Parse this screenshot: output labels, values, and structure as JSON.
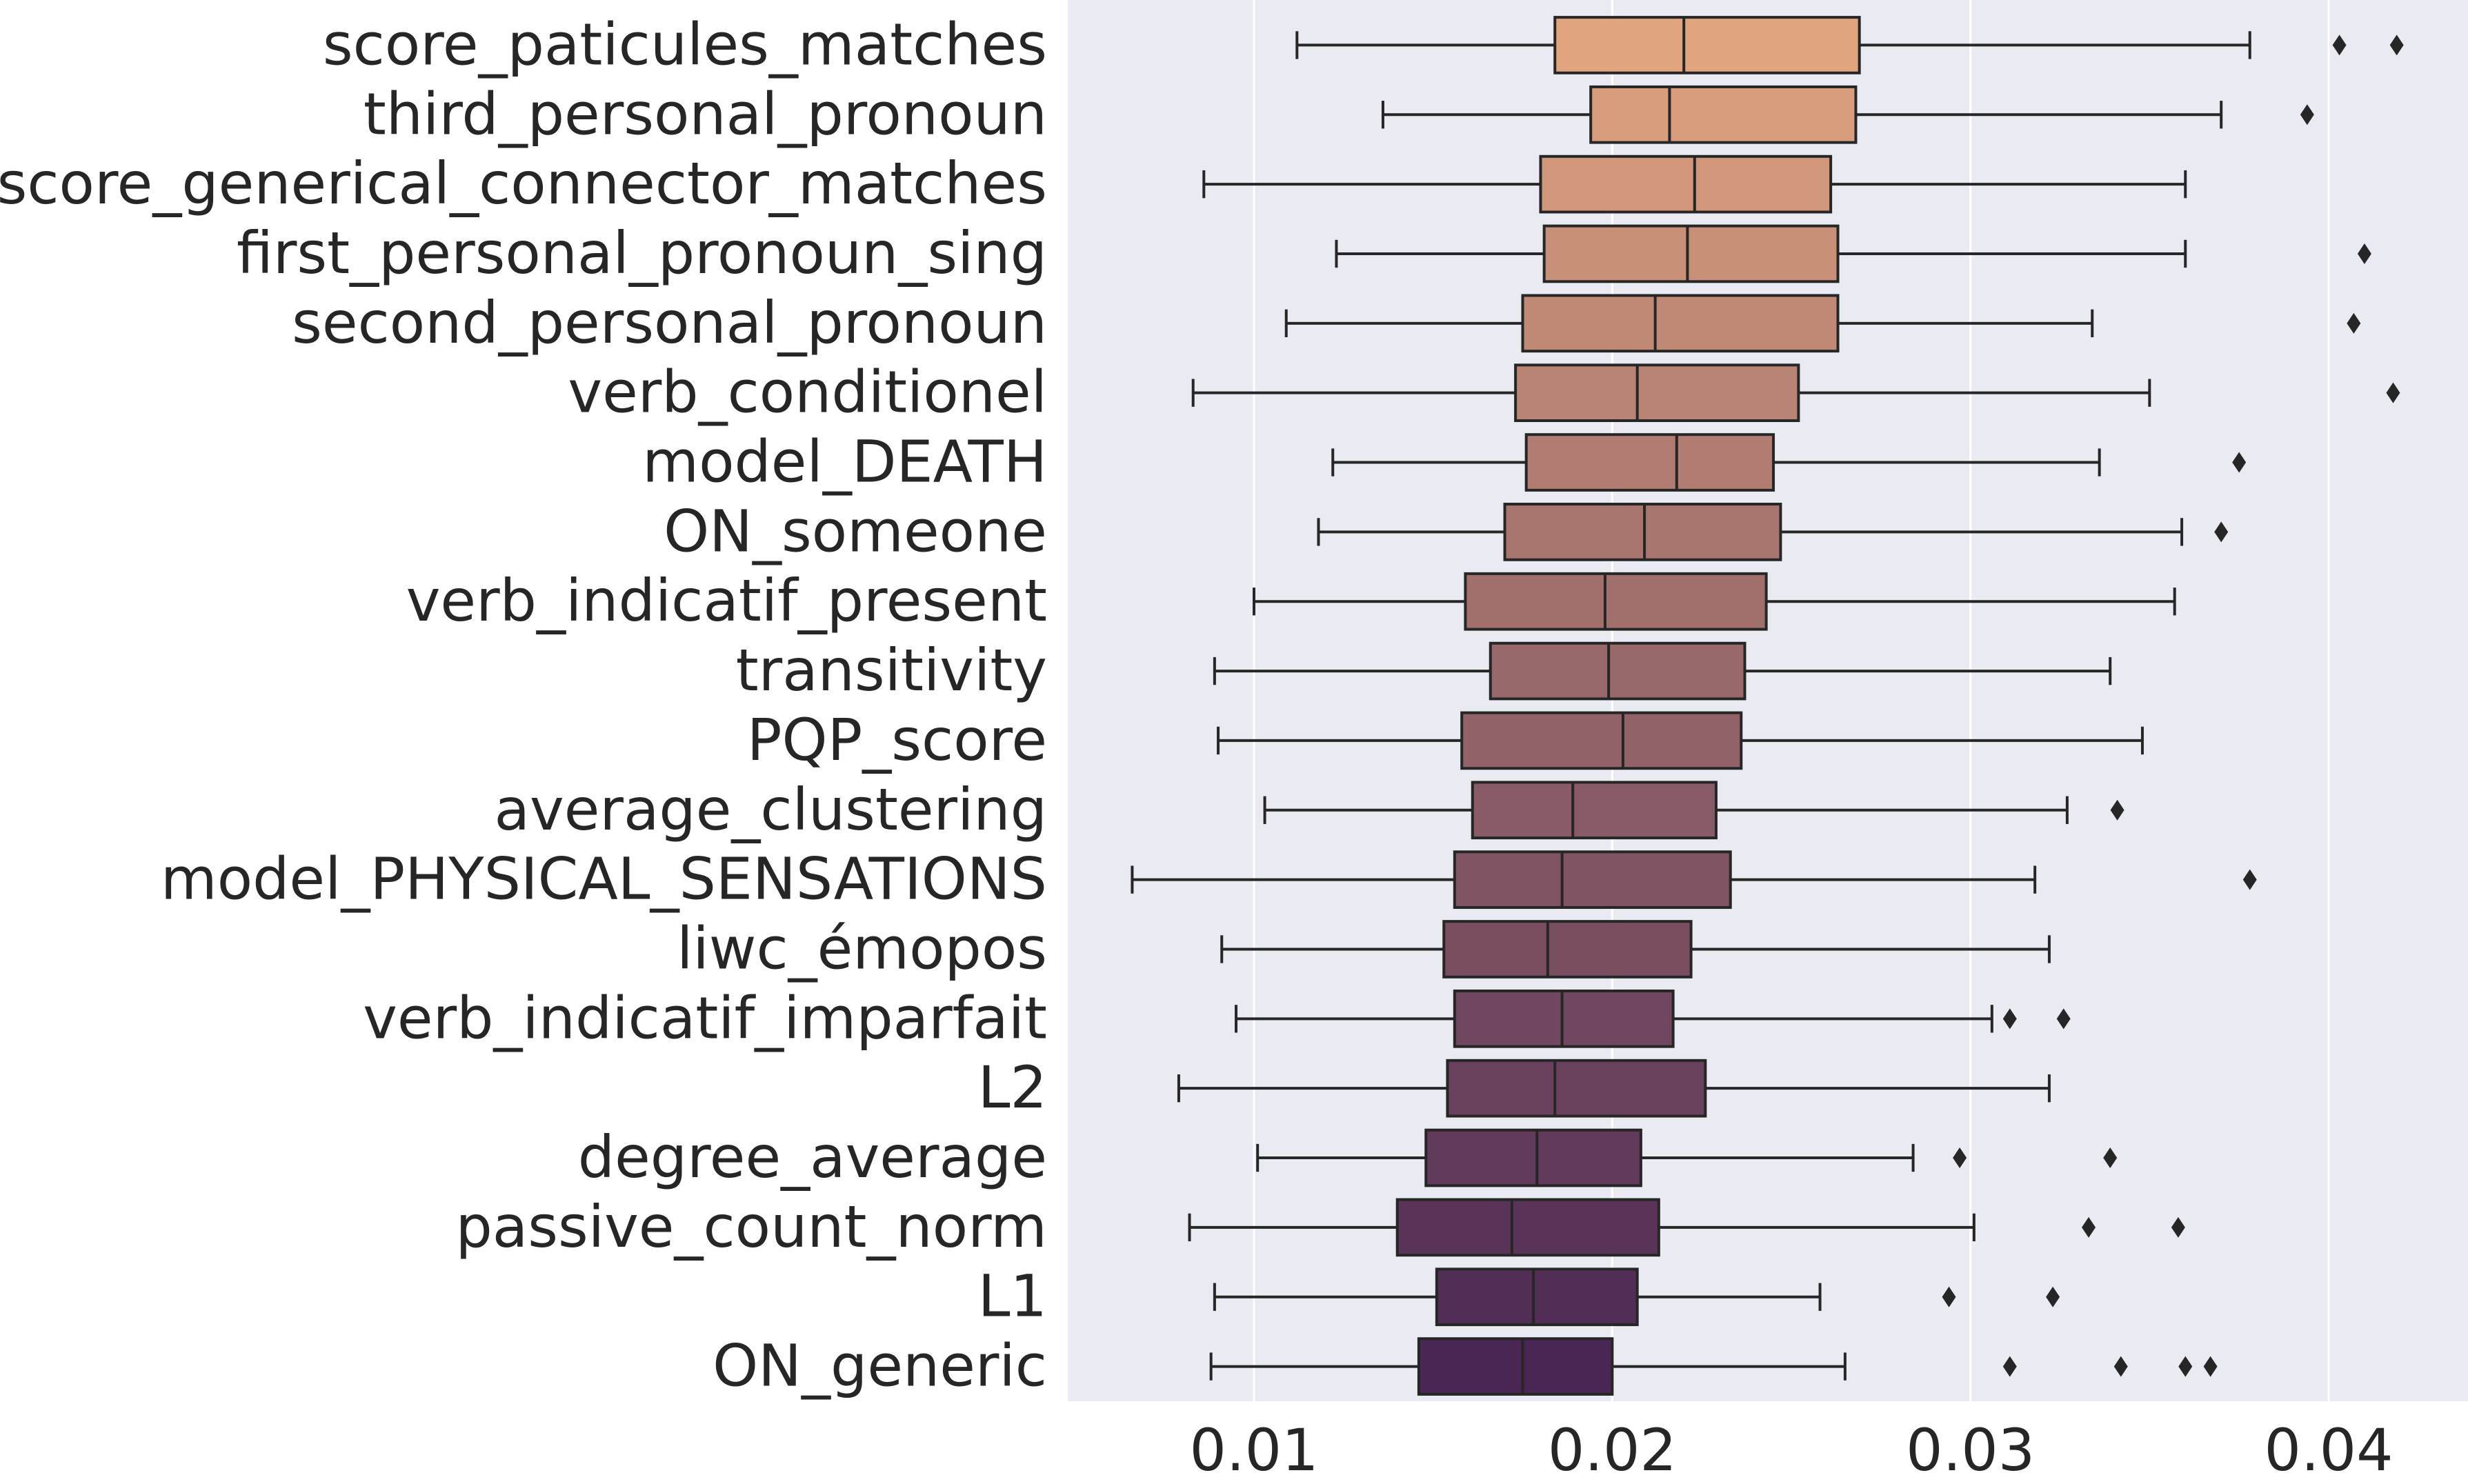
{
  "chart_data": {
    "type": "boxplot",
    "orientation": "horizontal",
    "title": "",
    "xlabel": "",
    "ylabel": "",
    "xlim": [
      0.0048,
      0.0428
    ],
    "xticks": [
      0.01,
      0.02,
      0.03,
      0.04
    ],
    "xtick_labels": [
      "0.01",
      "0.02",
      "0.03",
      "0.04"
    ],
    "grid": "vertical",
    "colors": {
      "background": "#eaeaf2",
      "grid": "#ffffff",
      "line": "#262626",
      "palette_start": "#e0a47e",
      "palette_end": "#4a2654"
    },
    "categories": [
      "score_paticules_matches",
      "third_personal_pronoun",
      "score_generical_connector_matches",
      "first_personal_pronoun_sing",
      "second_personal_pronoun",
      "verb_conditionel",
      "model_DEATH",
      "ON_someone",
      "verb_indicatif_present",
      "transitivity",
      "PQP_score",
      "average_clustering",
      "model_PHYSICAL_SENSATIONS",
      "liwc_émopos",
      "verb_indicatif_imparfait",
      "L2",
      "degree_average",
      "passive_count_norm",
      "L1",
      "ON_generic"
    ],
    "boxes": [
      {
        "whislo": 0.0112,
        "q1": 0.0184,
        "med": 0.022,
        "q3": 0.0269,
        "whishi": 0.0378,
        "fliers": [
          0.0403,
          0.0419
        ]
      },
      {
        "whislo": 0.0136,
        "q1": 0.0194,
        "med": 0.0216,
        "q3": 0.0268,
        "whishi": 0.037,
        "fliers": [
          0.0394
        ]
      },
      {
        "whislo": 0.0086,
        "q1": 0.018,
        "med": 0.0223,
        "q3": 0.0261,
        "whishi": 0.036,
        "fliers": []
      },
      {
        "whislo": 0.0123,
        "q1": 0.0181,
        "med": 0.0221,
        "q3": 0.0263,
        "whishi": 0.036,
        "fliers": [
          0.041
        ]
      },
      {
        "whislo": 0.0109,
        "q1": 0.0175,
        "med": 0.0212,
        "q3": 0.0263,
        "whishi": 0.0334,
        "fliers": [
          0.0407
        ]
      },
      {
        "whislo": 0.0083,
        "q1": 0.0173,
        "med": 0.0207,
        "q3": 0.0252,
        "whishi": 0.035,
        "fliers": [
          0.0418
        ]
      },
      {
        "whislo": 0.0122,
        "q1": 0.0176,
        "med": 0.0218,
        "q3": 0.0245,
        "whishi": 0.0336,
        "fliers": [
          0.0375
        ]
      },
      {
        "whislo": 0.0118,
        "q1": 0.017,
        "med": 0.0209,
        "q3": 0.0247,
        "whishi": 0.0359,
        "fliers": [
          0.037
        ]
      },
      {
        "whislo": 0.01,
        "q1": 0.0159,
        "med": 0.0198,
        "q3": 0.0243,
        "whishi": 0.0357,
        "fliers": []
      },
      {
        "whislo": 0.0089,
        "q1": 0.0166,
        "med": 0.0199,
        "q3": 0.0237,
        "whishi": 0.0339,
        "fliers": []
      },
      {
        "whislo": 0.009,
        "q1": 0.0158,
        "med": 0.0203,
        "q3": 0.0236,
        "whishi": 0.0348,
        "fliers": []
      },
      {
        "whislo": 0.0103,
        "q1": 0.0161,
        "med": 0.0189,
        "q3": 0.0229,
        "whishi": 0.0327,
        "fliers": [
          0.0341
        ]
      },
      {
        "whislo": 0.0066,
        "q1": 0.0156,
        "med": 0.0186,
        "q3": 0.0233,
        "whishi": 0.0318,
        "fliers": [
          0.0378
        ]
      },
      {
        "whislo": 0.0091,
        "q1": 0.0153,
        "med": 0.0182,
        "q3": 0.0222,
        "whishi": 0.0322,
        "fliers": []
      },
      {
        "whislo": 0.0095,
        "q1": 0.0156,
        "med": 0.0186,
        "q3": 0.0217,
        "whishi": 0.0306,
        "fliers": [
          0.0311,
          0.0326
        ]
      },
      {
        "whislo": 0.0079,
        "q1": 0.0154,
        "med": 0.0184,
        "q3": 0.0226,
        "whishi": 0.0322,
        "fliers": []
      },
      {
        "whislo": 0.0101,
        "q1": 0.0148,
        "med": 0.0179,
        "q3": 0.0208,
        "whishi": 0.0284,
        "fliers": [
          0.0297,
          0.0339
        ]
      },
      {
        "whislo": 0.0082,
        "q1": 0.014,
        "med": 0.0172,
        "q3": 0.0213,
        "whishi": 0.0301,
        "fliers": [
          0.0333,
          0.0358
        ]
      },
      {
        "whislo": 0.0089,
        "q1": 0.0151,
        "med": 0.0178,
        "q3": 0.0207,
        "whishi": 0.0258,
        "fliers": [
          0.0294,
          0.0323
        ]
      },
      {
        "whislo": 0.0088,
        "q1": 0.0146,
        "med": 0.0175,
        "q3": 0.02,
        "whishi": 0.0265,
        "fliers": [
          0.0311,
          0.0342,
          0.036,
          0.0367
        ]
      }
    ]
  }
}
